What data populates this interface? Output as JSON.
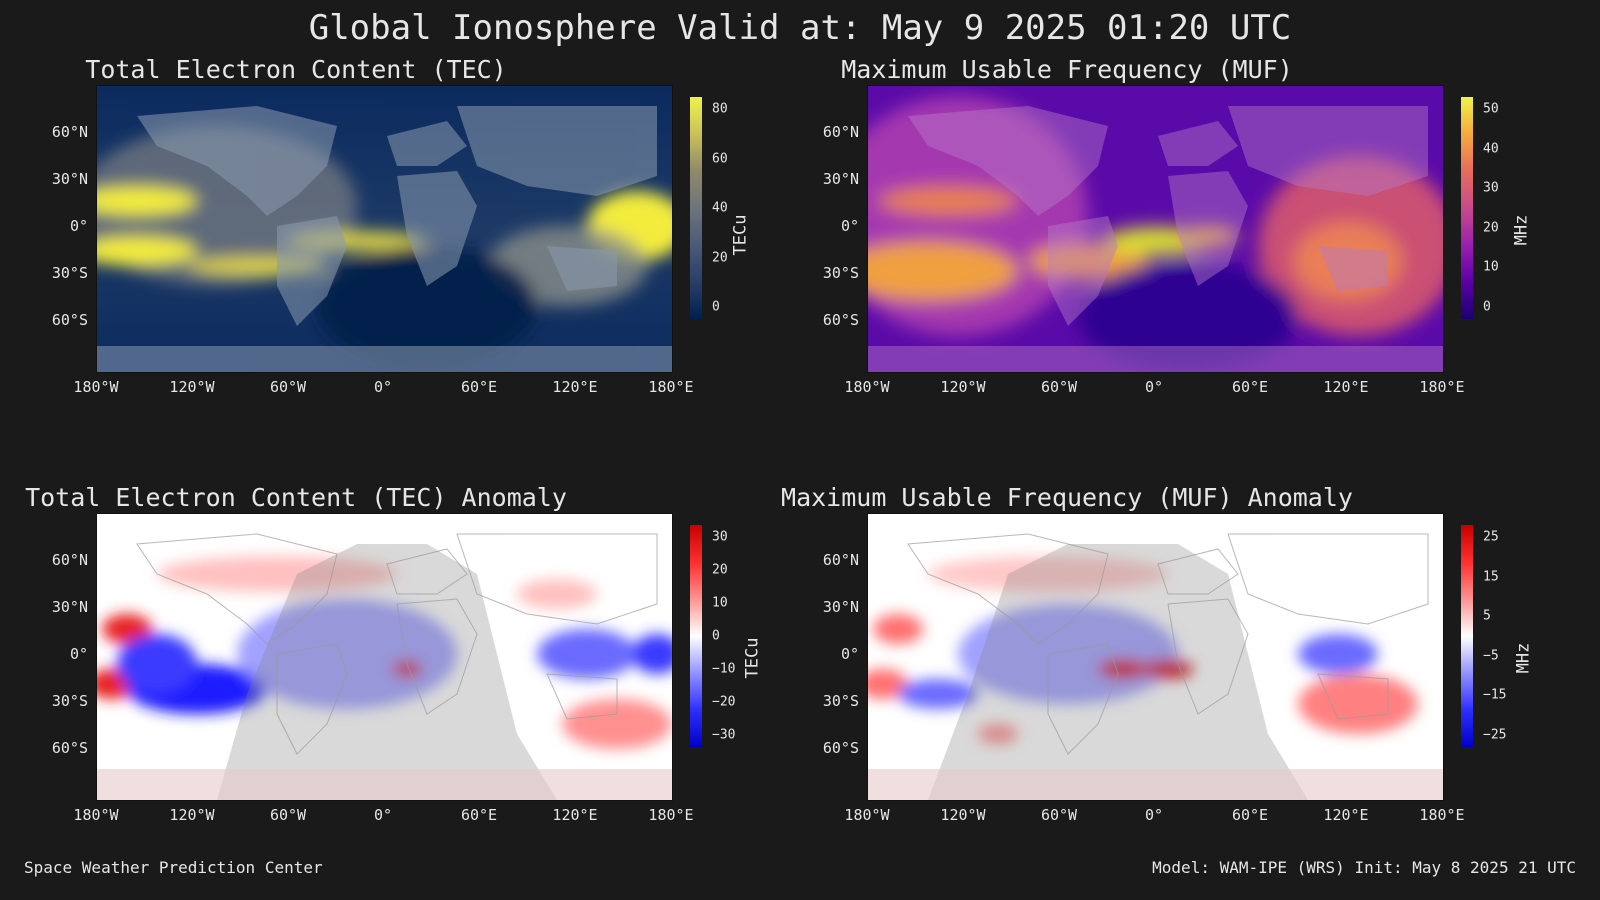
{
  "title": "Global Ionosphere Valid at: May 9 2025 01:20 UTC",
  "footer": {
    "left": "Space Weather Prediction Center",
    "right": "Model: WAM-IPE (WRS) Init: May 8 2025 21 UTC"
  },
  "lat_labels": [
    "60°N",
    "30°N",
    "0°",
    "30°S",
    "60°S"
  ],
  "lon_labels": [
    "180°W",
    "120°W",
    "60°W",
    "0°",
    "60°E",
    "120°E",
    "180°E"
  ],
  "panels": [
    {
      "title": "Total Electron Content (TEC)",
      "colorbar_label": "TECu",
      "ticks": [
        "80",
        "60",
        "40",
        "20",
        "0"
      ],
      "colormap": [
        "#eef24a",
        "#c9c05a",
        "#8f8a6a",
        "#6f747c",
        "#4a5a78",
        "#2a4068",
        "#002050"
      ],
      "kind": "tec"
    },
    {
      "title": "Maximum Usable Frequency (MUF)",
      "colorbar_label": "MHz",
      "ticks": [
        "50",
        "40",
        "30",
        "20",
        "10",
        "0"
      ],
      "colormap": [
        "#eef24a",
        "#f5a93e",
        "#e86d5a",
        "#c94a8a",
        "#9a1fb0",
        "#5c00a8",
        "#1a0070"
      ],
      "kind": "muf"
    },
    {
      "title": "Total Electron Content (TEC) Anomaly",
      "colorbar_label": "TECu",
      "ticks": [
        "30",
        "20",
        "10",
        "0",
        "−10",
        "−20",
        "−30"
      ],
      "colormap": [
        "#c80000",
        "#ff3030",
        "#ff9090",
        "#ffffff",
        "#9090ff",
        "#3030ff",
        "#0000c8"
      ],
      "kind": "anom1"
    },
    {
      "title": "Maximum Usable Frequency (MUF) Anomaly",
      "colorbar_label": "MHz",
      "ticks": [
        "25",
        "15",
        "5",
        "−5",
        "−15",
        "−25"
      ],
      "colormap": [
        "#c80000",
        "#ff3030",
        "#ff9090",
        "#ffffff",
        "#9090ff",
        "#3030ff",
        "#0000c8"
      ],
      "kind": "anom2"
    }
  ]
}
